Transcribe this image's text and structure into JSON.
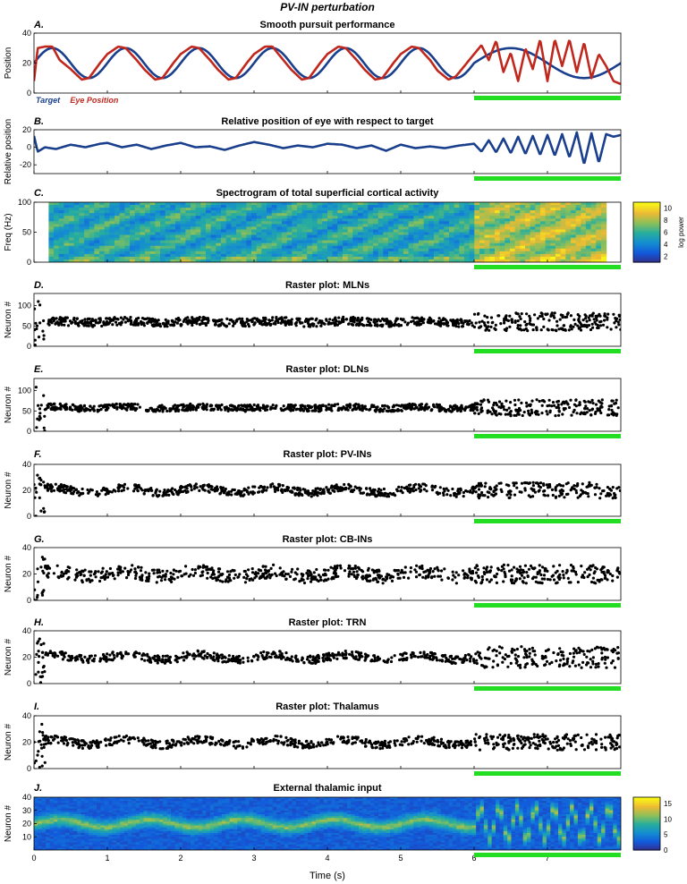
{
  "figure": {
    "title": "PV-IN perturbation",
    "xlabel": "Time (s)",
    "xticks": [
      "0",
      "1",
      "2",
      "3",
      "4",
      "5",
      "6",
      "7"
    ],
    "perturbation_color": "#22dd22",
    "perturbation_interval_s": [
      6.0,
      8.0
    ]
  },
  "chart_data": [
    {
      "type": "line",
      "panel": "A.",
      "title": "Smooth pursuit performance",
      "ylabel": "Position",
      "ylim": [
        0,
        40
      ],
      "yticks": [
        "0",
        "20",
        "40"
      ],
      "legend": [
        {
          "name": "Target",
          "color": "#1a3f8c"
        },
        {
          "name": "Eye Position",
          "color": "#c0281e"
        }
      ],
      "series": [
        {
          "name": "Target",
          "color": "#1a3f8c",
          "description": "sinusoid centered at 20, amplitude 10, period 1 s",
          "x": [
            0.0,
            0.25,
            0.5,
            0.75,
            1.0,
            1.25,
            1.5,
            1.75,
            2.0,
            2.25,
            2.5,
            2.75,
            3.0,
            3.25,
            3.5,
            3.75,
            4.0,
            4.25,
            4.5,
            4.75,
            5.0,
            5.25,
            5.5,
            5.75,
            6.0,
            6.25,
            6.5,
            6.75,
            7.0,
            7.25,
            7.5,
            7.75,
            8.0
          ],
          "y": [
            20,
            30,
            20,
            10,
            20,
            30,
            20,
            10,
            20,
            30,
            20,
            10,
            20,
            30,
            20,
            10,
            20,
            30,
            20,
            10,
            20,
            30,
            20,
            10,
            20,
            22,
            24,
            28,
            30,
            28,
            22,
            15,
            20
          ]
        },
        {
          "name": "Eye Position",
          "color": "#c0281e",
          "x": [
            0.0,
            0.05,
            0.15,
            0.25,
            0.35,
            0.5,
            0.65,
            0.75,
            0.9,
            1.0,
            1.15,
            1.25,
            1.4,
            1.5,
            1.65,
            1.75,
            1.9,
            2.0,
            2.15,
            2.25,
            2.4,
            2.5,
            2.65,
            2.75,
            2.9,
            3.0,
            3.15,
            3.25,
            3.4,
            3.5,
            3.65,
            3.75,
            3.9,
            4.0,
            4.15,
            4.25,
            4.4,
            4.5,
            4.65,
            4.75,
            4.9,
            5.0,
            5.15,
            5.25,
            5.4,
            5.5,
            5.65,
            5.75,
            5.9,
            6.0,
            6.1,
            6.2,
            6.3,
            6.4,
            6.5,
            6.6,
            6.7,
            6.8,
            6.9,
            7.0,
            7.1,
            7.2,
            7.3,
            7.4,
            7.5,
            7.6,
            7.7,
            7.8,
            7.9,
            8.0
          ],
          "y": [
            8,
            30,
            31,
            31,
            22,
            16,
            9,
            10,
            20,
            26,
            31,
            30,
            22,
            16,
            9,
            10,
            20,
            26,
            31,
            30,
            22,
            16,
            9,
            10,
            20,
            26,
            31,
            31,
            22,
            16,
            9,
            10,
            20,
            26,
            31,
            30,
            22,
            16,
            9,
            10,
            20,
            26,
            31,
            30,
            22,
            15,
            9,
            11,
            20,
            26,
            32,
            22,
            35,
            14,
            27,
            8,
            30,
            16,
            36,
            8,
            36,
            18,
            36,
            14,
            34,
            10,
            26,
            18,
            8,
            6
          ]
        }
      ]
    },
    {
      "type": "line",
      "panel": "B.",
      "title": "Relative position of eye with respect to target",
      "ylabel": "Relative position",
      "ylim": [
        -30,
        20
      ],
      "yticks": [
        "-20",
        "0",
        "20"
      ],
      "series": [
        {
          "name": "",
          "color": "#1a3f8c",
          "x": [
            0.0,
            0.05,
            0.15,
            0.3,
            0.5,
            0.7,
            0.9,
            1.0,
            1.2,
            1.4,
            1.6,
            1.8,
            2.0,
            2.2,
            2.4,
            2.6,
            2.8,
            3.0,
            3.2,
            3.4,
            3.6,
            3.8,
            4.0,
            4.2,
            4.4,
            4.6,
            4.8,
            5.0,
            5.2,
            5.4,
            5.6,
            5.8,
            6.0,
            6.1,
            6.2,
            6.3,
            6.4,
            6.5,
            6.6,
            6.7,
            6.8,
            6.9,
            7.0,
            7.1,
            7.2,
            7.3,
            7.4,
            7.5,
            7.6,
            7.7,
            7.8,
            7.9,
            8.0
          ],
          "y": [
            13,
            -5,
            0,
            -2,
            3,
            0,
            4,
            5,
            0,
            3,
            -2,
            2,
            5,
            0,
            1,
            -3,
            2,
            6,
            3,
            -1,
            2,
            0,
            4,
            3,
            -1,
            2,
            -4,
            3,
            -1,
            1,
            -1,
            2,
            4,
            -5,
            8,
            -6,
            10,
            -7,
            12,
            -8,
            13,
            -9,
            14,
            -10,
            15,
            -12,
            17,
            -20,
            16,
            -18,
            15,
            12,
            14
          ]
        }
      ]
    },
    {
      "type": "heatmap",
      "panel": "C.",
      "title": "Spectrogram of total superficial cortical activity",
      "ylabel": "Freq (Hz)",
      "ylim": [
        0,
        100
      ],
      "yticks": [
        "0",
        "50",
        "100"
      ],
      "xlim": [
        0.2,
        7.8
      ],
      "colorbar": {
        "label": "log power",
        "ticks": [
          "2",
          "4",
          "6",
          "8",
          "10"
        ],
        "range": [
          1,
          11
        ]
      },
      "description": "mostly 5-7 log power before 6 s; higher (8-10) at 6-8 s, especially at low frequencies"
    },
    {
      "type": "scatter",
      "panel": "D.",
      "title": "Raster plot: MLNs",
      "ylabel": "Neuron #",
      "ylim": [
        0,
        130
      ],
      "yticks": [
        "0",
        "50",
        "100"
      ],
      "band_center": 60,
      "band_halfwidth_before": 10,
      "band_halfwidth_after": 22
    },
    {
      "type": "scatter",
      "panel": "E.",
      "title": "Raster plot: DLNs",
      "ylabel": "Neuron #",
      "ylim": [
        0,
        130
      ],
      "yticks": [
        "0",
        "50",
        "100"
      ],
      "band_center": 58,
      "band_halfwidth_before": 8,
      "band_halfwidth_after": 20
    },
    {
      "type": "scatter",
      "panel": "F.",
      "title": "Raster plot: PV-INs",
      "ylabel": "Neuron #",
      "ylim": [
        0,
        40
      ],
      "yticks": [
        "0",
        "20",
        "40"
      ],
      "band_center": 20,
      "band_halfwidth_before": 3,
      "band_halfwidth_after": 6
    },
    {
      "type": "scatter",
      "panel": "G.",
      "title": "Raster plot: CB-INs",
      "ylabel": "Neuron #",
      "ylim": [
        0,
        40
      ],
      "yticks": [
        "0",
        "20",
        "40"
      ],
      "band_center": 20,
      "band_halfwidth_before": 5,
      "band_halfwidth_after": 7
    },
    {
      "type": "scatter",
      "panel": "H.",
      "title": "Raster plot: TRN",
      "ylabel": "Neuron #",
      "ylim": [
        0,
        40
      ],
      "yticks": [
        "0",
        "20",
        "40"
      ],
      "band_center": 20,
      "band_halfwidth_before": 3,
      "band_halfwidth_after": 8
    },
    {
      "type": "scatter",
      "panel": "I.",
      "title": "Raster plot: Thalamus",
      "ylabel": "Neuron #",
      "ylim": [
        0,
        40
      ],
      "yticks": [
        "0",
        "20",
        "40"
      ],
      "band_center": 20,
      "band_halfwidth_before": 3,
      "band_halfwidth_after": 6
    },
    {
      "type": "heatmap",
      "panel": "J.",
      "title": "External thalamic input",
      "ylabel": "Neuron #",
      "ylim": [
        0,
        40
      ],
      "yticks": [
        "10",
        "20",
        "30",
        "40"
      ],
      "colorbar": {
        "label": "",
        "ticks": [
          "0",
          "5",
          "10",
          "15"
        ],
        "range": [
          0,
          17
        ]
      },
      "description": "bright band (~10-15) following the slow sinusoid centered near neuron 20 before 6 s, faster oscillation after 6 s"
    }
  ]
}
